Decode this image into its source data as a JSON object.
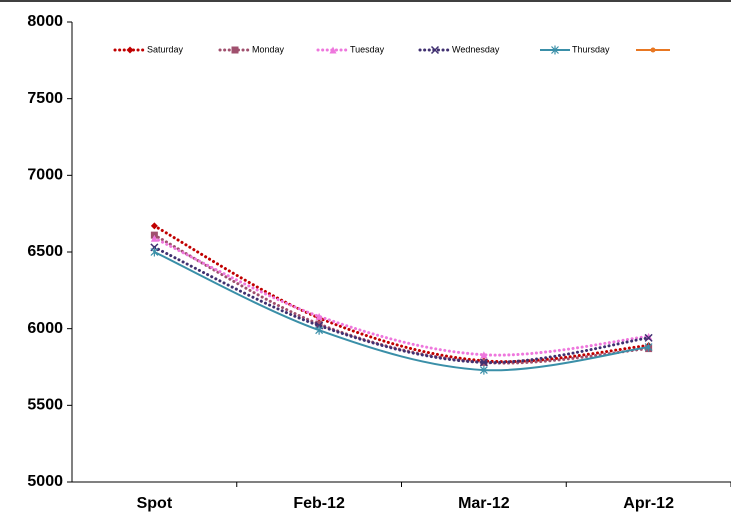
{
  "chart_data": {
    "type": "line",
    "categories": [
      "Spot",
      "Feb-12",
      "Mar-12",
      "Apr-12"
    ],
    "series": [
      {
        "name": "Saturday",
        "color": "#c00000",
        "dash": "dot",
        "marker": "diamond",
        "values": [
          6670,
          6070,
          5790,
          5890
        ]
      },
      {
        "name": "Monday",
        "color": "#a0506e",
        "dash": "dot",
        "marker": "square",
        "values": [
          6610,
          6030,
          5780,
          5870
        ]
      },
      {
        "name": "Tuesday",
        "color": "#ee77dd",
        "dash": "dot",
        "marker": "triangle",
        "values": [
          6590,
          6080,
          5830,
          5950
        ]
      },
      {
        "name": "Wednesday",
        "color": "#403070",
        "dash": "dot",
        "marker": "x",
        "values": [
          6530,
          6020,
          5780,
          5940
        ]
      },
      {
        "name": "Thursday",
        "color": "#3a8fa8",
        "dash": "solid",
        "marker": "star",
        "values": [
          6500,
          5990,
          5730,
          5880
        ]
      }
    ],
    "ylim": [
      5000,
      8000
    ],
    "yticks": [
      5000,
      5500,
      6000,
      6500,
      7000,
      7500,
      8000
    ],
    "smooth": true,
    "grid": false
  }
}
